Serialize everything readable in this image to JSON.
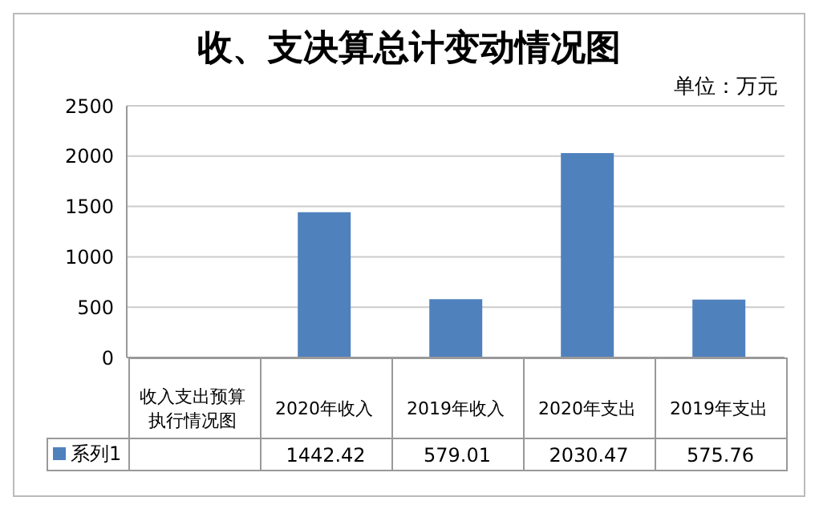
{
  "chart_data": {
    "type": "bar",
    "title": "收、支决算总计变动情况图",
    "annotations": [
      "单位：万元"
    ],
    "categories": [
      "收入支出预算执行情况图",
      "2020年收入",
      "2019年收入",
      "2020年支出",
      "2019年支出"
    ],
    "series": [
      {
        "name": "系列1",
        "color": "#4f81bd",
        "values": [
          null,
          1442.42,
          579.01,
          2030.47,
          575.76
        ]
      }
    ],
    "ylim": [
      0,
      2500
    ],
    "yticks": [
      0,
      500,
      1000,
      1500,
      2000,
      2500
    ],
    "grid": "y",
    "legend": "bottom",
    "data_labels": true
  }
}
